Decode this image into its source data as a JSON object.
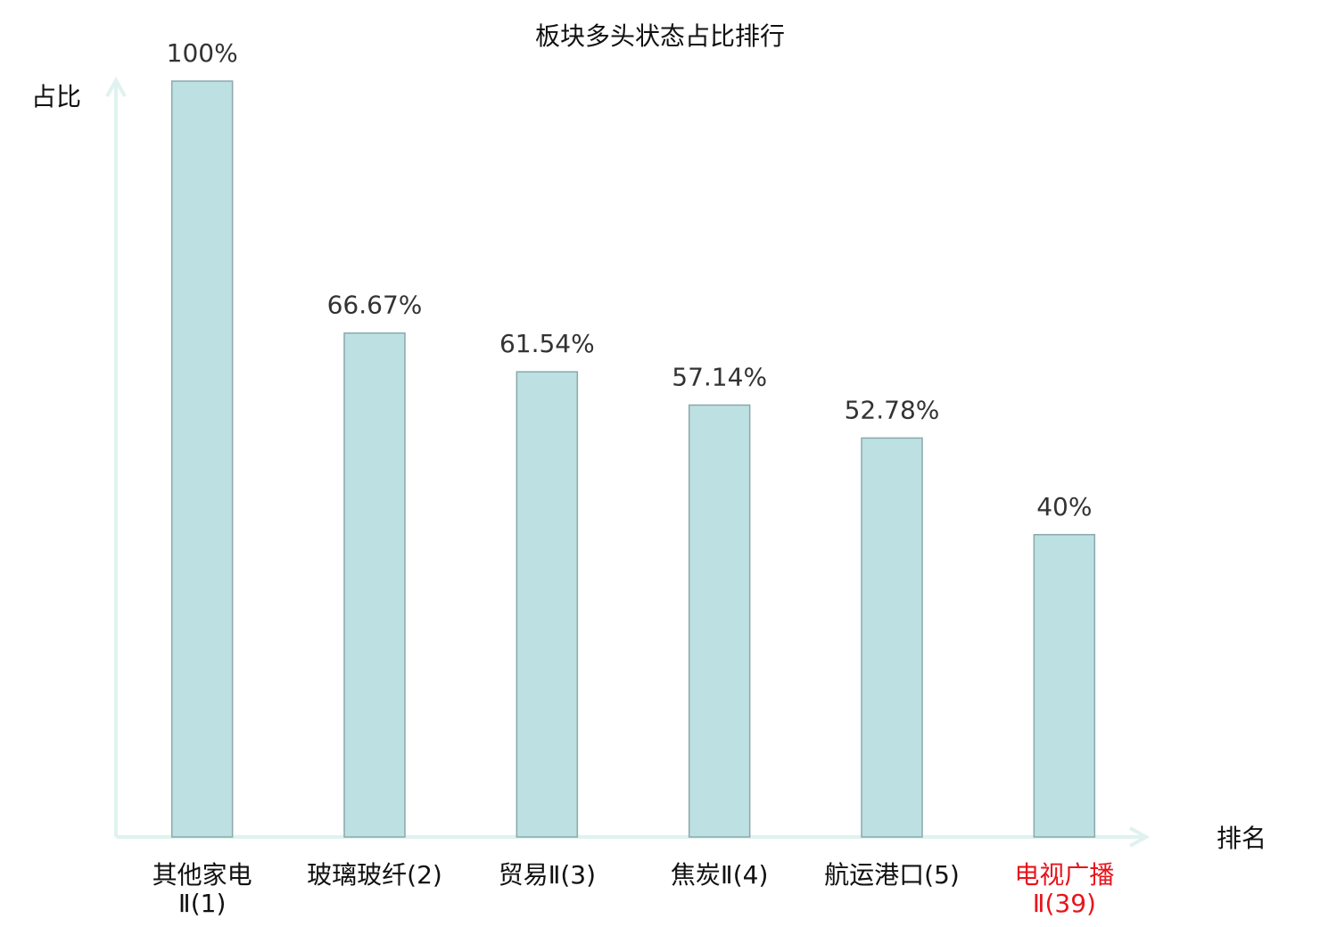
{
  "chart_data": {
    "type": "bar",
    "title": "板块多头状态占比排行",
    "y_label": "占比",
    "x_label": "排名",
    "categories": [
      "其他家电\nⅡ(1)",
      "玻璃玻纤(2)",
      "贸易Ⅱ(3)",
      "焦炭Ⅱ(4)",
      "航运港口(5)",
      "电视广播\nⅡ(39)"
    ],
    "category_colors": [
      "#111111",
      "#111111",
      "#111111",
      "#111111",
      "#111111",
      "#e8141c"
    ],
    "values": [
      100,
      66.67,
      61.54,
      57.14,
      52.78,
      40
    ],
    "value_labels": [
      "100%",
      "66.67%",
      "61.54%",
      "57.14%",
      "52.78%",
      "40%"
    ],
    "color": "#bde0e2",
    "edge_color": "#8aa9ab",
    "axis_color": "#dff2ef",
    "ylim": [
      0,
      100
    ]
  }
}
